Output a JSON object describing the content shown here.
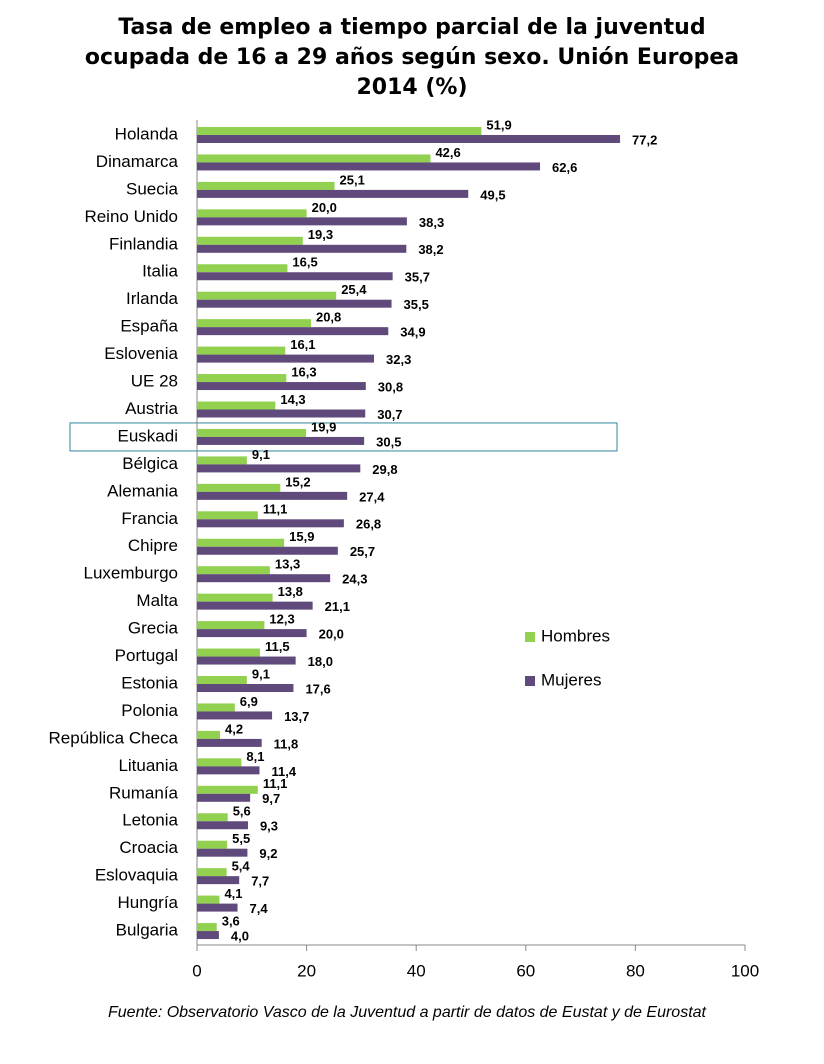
{
  "chart_data": {
    "type": "bar",
    "orientation": "horizontal",
    "title": [
      "Tasa de empleo a tiempo parcial de la juventud",
      "ocupada de  16 a 29 años según sexo. Unión Europea",
      "2014 (%)"
    ],
    "categories": [
      "Holanda",
      "Dinamarca",
      "Suecia",
      "Reino Unido",
      "Finlandia",
      "Italia",
      "Irlanda",
      "España",
      "Eslovenia",
      "UE 28",
      "Austria",
      "Euskadi",
      "Bélgica",
      "Alemania",
      "Francia",
      "Chipre",
      "Luxemburgo",
      "Malta",
      "Grecia",
      "Portugal",
      "Estonia",
      "Polonia",
      "República Checa",
      "Lituania",
      "Rumanía",
      "Letonia",
      "Croacia",
      "Eslovaquia",
      "Hungría",
      "Bulgaria"
    ],
    "series": [
      {
        "name": "Hombres",
        "color": "#92d050",
        "values": [
          51.9,
          42.6,
          25.1,
          20.0,
          19.3,
          16.5,
          25.4,
          20.8,
          16.1,
          16.3,
          14.3,
          19.9,
          9.1,
          15.2,
          11.1,
          15.9,
          13.3,
          13.8,
          12.3,
          11.5,
          9.1,
          6.9,
          4.2,
          8.1,
          11.1,
          5.6,
          5.5,
          5.4,
          4.1,
          3.6
        ],
        "value_labels": [
          "51,9",
          "42,6",
          "25,1",
          "20,0",
          "19,3",
          "16,5",
          "25,4",
          "20,8",
          "16,1",
          "16,3",
          "14,3",
          "19,9",
          "9,1",
          "15,2",
          "11,1",
          "15,9",
          "13,3",
          "13,8",
          "12,3",
          "11,5",
          "9,1",
          "6,9",
          "4,2",
          "8,1",
          "11,1",
          "5,6",
          "5,5",
          "5,4",
          "4,1",
          "3,6"
        ]
      },
      {
        "name": "Mujeres",
        "color": "#604a7b",
        "values": [
          77.2,
          62.6,
          49.5,
          38.3,
          38.2,
          35.7,
          35.5,
          34.9,
          32.3,
          30.8,
          30.7,
          30.5,
          29.8,
          27.4,
          26.8,
          25.7,
          24.3,
          21.1,
          20.0,
          18.0,
          17.6,
          13.7,
          11.8,
          11.4,
          9.7,
          9.3,
          9.2,
          7.7,
          7.4,
          4.0
        ],
        "value_labels": [
          "77,2",
          "62,6",
          "49,5",
          "38,3",
          "38,2",
          "35,7",
          "35,5",
          "34,9",
          "32,3",
          "30,8",
          "30,7",
          "30,5",
          "29,8",
          "27,4",
          "26,8",
          "25,7",
          "24,3",
          "21,1",
          "20,0",
          "18,0",
          "17,6",
          "13,7",
          "11,8",
          "11,4",
          "9,7",
          "9,3",
          "9,2",
          "7,7",
          "7,4",
          "4,0"
        ]
      }
    ],
    "xlim": [
      0,
      100
    ],
    "xticks": [
      0,
      20,
      40,
      60,
      80,
      100
    ],
    "highlight": "Euskadi",
    "legend": "right",
    "source": "Fuente: Observatorio Vasco de la Juventud a partir de datos de Eustat y de Eurostat"
  }
}
